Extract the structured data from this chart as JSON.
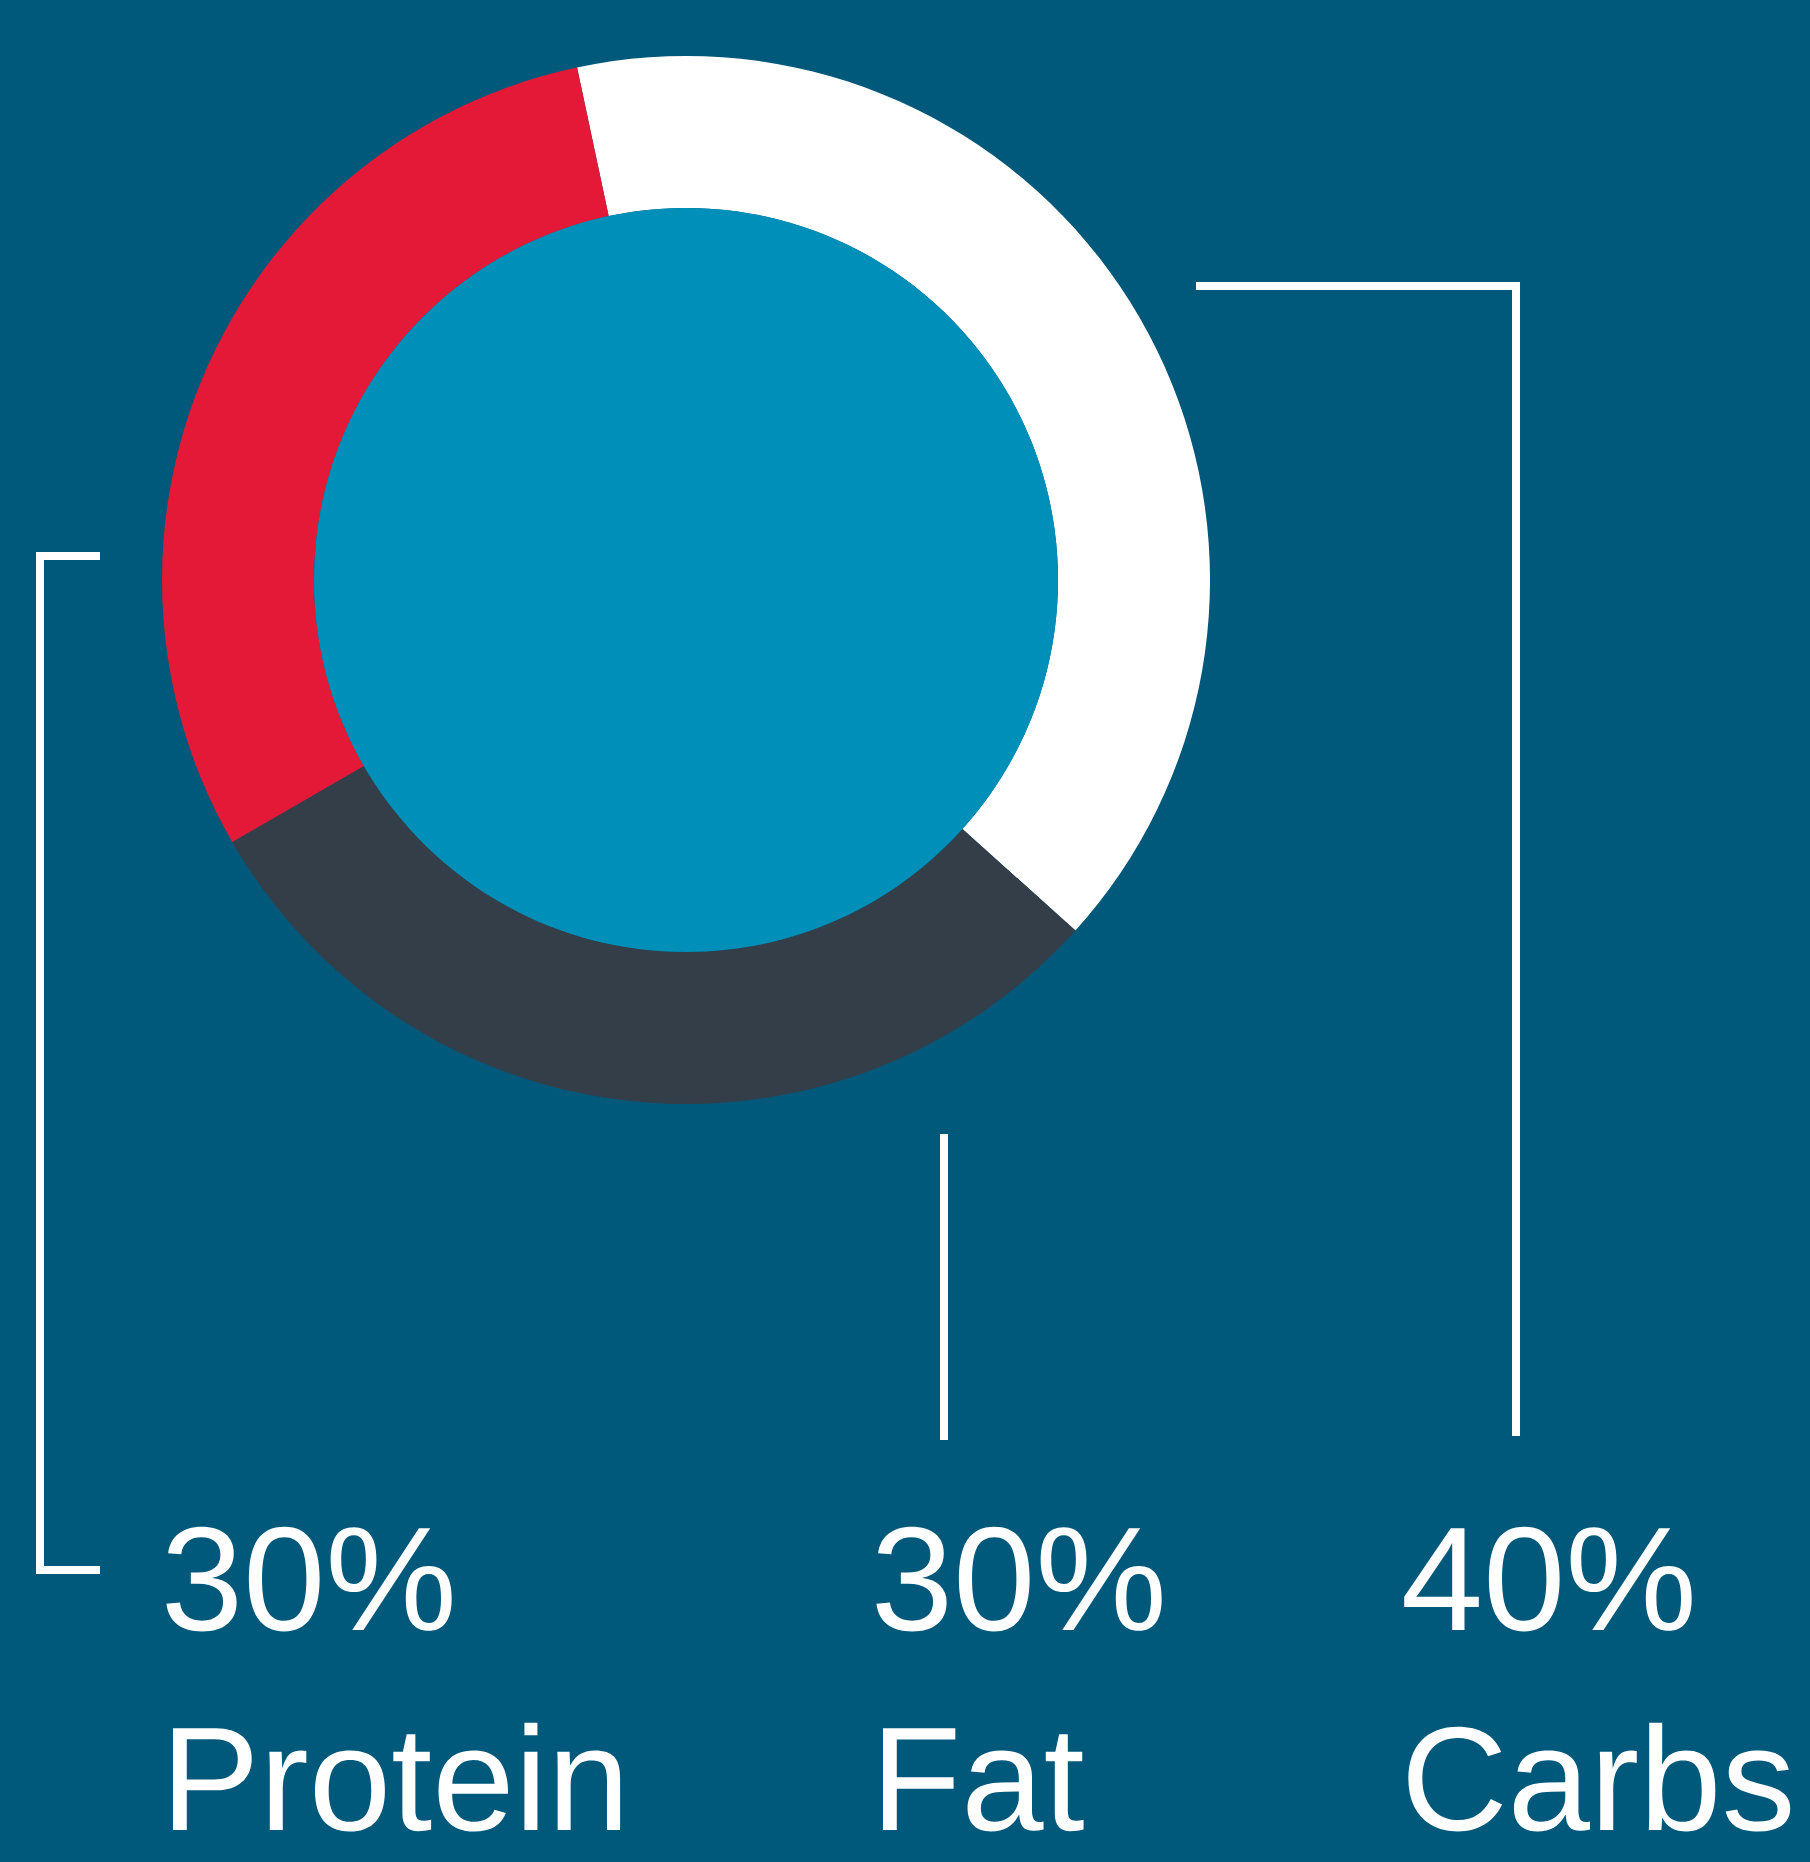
{
  "chart_data": {
    "type": "donut",
    "categories": [
      "Protein",
      "Fat",
      "Carbs"
    ],
    "values": [
      30,
      30,
      40
    ],
    "colors": [
      "#e31937",
      "#343e48",
      "#ffffff"
    ],
    "value_labels": [
      "30%",
      "30%",
      "40%"
    ]
  }
}
